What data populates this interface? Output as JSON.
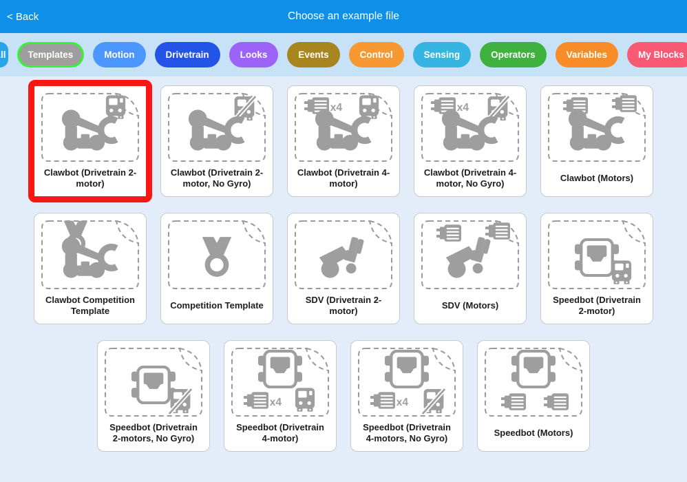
{
  "header": {
    "back_label": "< Back",
    "title": "Choose an example file"
  },
  "colors": {
    "header_bg": "#0e90e9",
    "filter_bar_bg": "#c7e2f6",
    "body_bg": "#e3edf9",
    "selection_red": "#f91613",
    "icon_gray": "#9e9e9e",
    "card_border": "#c9c9c9",
    "dashed_outline": "#9a9a9a"
  },
  "filters": [
    {
      "label": "All",
      "bg": "#29a4ea",
      "circle": true,
      "selected": false
    },
    {
      "label": "Templates",
      "bg": "#9e9e9e",
      "ring": "#35f435",
      "selected": true
    },
    {
      "label": "Motion",
      "bg": "#4c97ff",
      "selected": false
    },
    {
      "label": "Drivetrain",
      "bg": "#2453e8",
      "selected": false
    },
    {
      "label": "Looks",
      "bg": "#9b63f8",
      "selected": false
    },
    {
      "label": "Events",
      "bg": "#a8851f",
      "selected": false
    },
    {
      "label": "Control",
      "bg": "#f79932",
      "selected": false
    },
    {
      "label": "Sensing",
      "bg": "#36b5e2",
      "selected": false
    },
    {
      "label": "Operators",
      "bg": "#3eb13e",
      "selected": false
    },
    {
      "label": "Variables",
      "bg": "#f78c28",
      "selected": false
    },
    {
      "label": "My Blocks",
      "bg": "#f85a74",
      "selected": false
    }
  ],
  "cards": [
    {
      "label": "Clawbot (Drivetrain 2-motor)",
      "selected": true,
      "icons": [
        {
          "name": "brain-icon",
          "slot": "tr"
        },
        {
          "name": "clawbot-icon",
          "slot": "c"
        }
      ]
    },
    {
      "label": "Clawbot (Drivetrain 2-motor, No Gyro)",
      "selected": false,
      "icons": [
        {
          "name": "brain-crossed-icon",
          "slot": "tr"
        },
        {
          "name": "clawbot-icon",
          "slot": "c"
        }
      ]
    },
    {
      "label": "Clawbot (Drivetrain 4-motor)",
      "selected": false,
      "icons": [
        {
          "name": "motor-x4-icon",
          "slot": "tl"
        },
        {
          "name": "brain-icon",
          "slot": "tr"
        },
        {
          "name": "clawbot-icon",
          "slot": "c"
        }
      ]
    },
    {
      "label": "Clawbot (Drivetrain 4-motor, No Gyro)",
      "selected": false,
      "icons": [
        {
          "name": "motor-x4-icon",
          "slot": "tl"
        },
        {
          "name": "brain-crossed-icon",
          "slot": "tr"
        },
        {
          "name": "clawbot-icon",
          "slot": "c"
        }
      ]
    },
    {
      "label": "Clawbot (Motors)",
      "selected": false,
      "icons": [
        {
          "name": "motor-icon",
          "slot": "tl2"
        },
        {
          "name": "motor-icon",
          "slot": "tr"
        },
        {
          "name": "clawbot-icon",
          "slot": "c"
        }
      ]
    },
    {
      "label": "Clawbot Competition Template",
      "selected": false,
      "icons": [
        {
          "name": "medal-icon",
          "slot": "tl-medal"
        },
        {
          "name": "clawbot-icon",
          "slot": "c"
        }
      ]
    },
    {
      "label": "Competition Template",
      "selected": false,
      "icons": [
        {
          "name": "medal-large-icon",
          "slot": "c"
        }
      ]
    },
    {
      "label": "SDV (Drivetrain 2-motor)",
      "selected": false,
      "icons": [
        {
          "name": "sdv-icon",
          "slot": "c"
        }
      ]
    },
    {
      "label": "SDV (Motors)",
      "selected": false,
      "icons": [
        {
          "name": "motor-icon",
          "slot": "tl2"
        },
        {
          "name": "motor-icon",
          "slot": "tr"
        },
        {
          "name": "sdv-icon",
          "slot": "c"
        }
      ]
    },
    {
      "label": "Speedbot (Drivetrain 2-motor)",
      "selected": false,
      "icons": [
        {
          "name": "speedbot-icon",
          "slot": "c"
        },
        {
          "name": "brain-icon",
          "slot": "br"
        }
      ]
    },
    {
      "label": "Speedbot (Drivetrain 2-motors, No Gyro)",
      "selected": false,
      "icons": [
        {
          "name": "speedbot-icon",
          "slot": "c"
        },
        {
          "name": "brain-crossed-icon",
          "slot": "br"
        }
      ]
    },
    {
      "label": "Speedbot (Drivetrain 4-motor)",
      "selected": false,
      "icons": [
        {
          "name": "speedbot-icon",
          "slot": "tc"
        },
        {
          "name": "motor-x4-icon",
          "slot": "bl"
        },
        {
          "name": "brain-icon",
          "slot": "br"
        }
      ]
    },
    {
      "label": "Speedbot (Drivetrain 4-motors, No Gyro)",
      "selected": false,
      "icons": [
        {
          "name": "speedbot-icon",
          "slot": "tc"
        },
        {
          "name": "motor-x4-icon",
          "slot": "bl"
        },
        {
          "name": "brain-crossed-icon",
          "slot": "br"
        }
      ]
    },
    {
      "label": "Speedbot (Motors)",
      "selected": false,
      "icons": [
        {
          "name": "speedbot-icon",
          "slot": "tc"
        },
        {
          "name": "motor-icon",
          "slot": "bl2"
        },
        {
          "name": "motor-icon",
          "slot": "br2"
        }
      ]
    }
  ]
}
